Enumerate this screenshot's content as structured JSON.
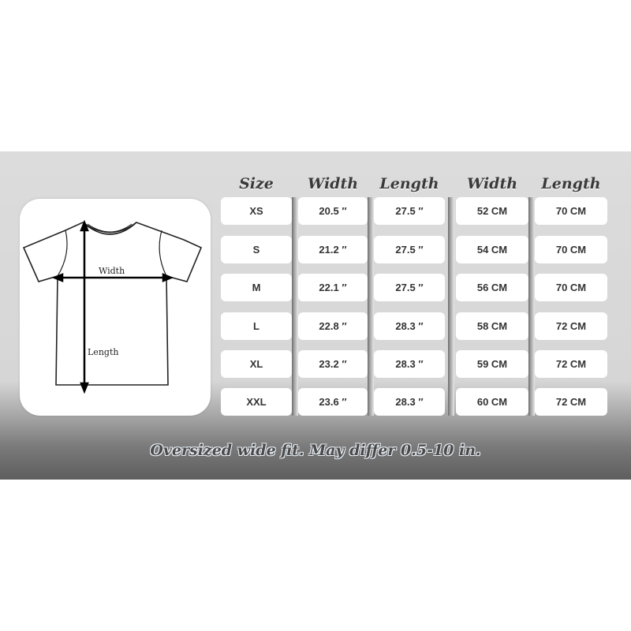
{
  "diagram": {
    "width_label": "Width",
    "length_label": "Length"
  },
  "headers": [
    "Size",
    "Width",
    "Length",
    "Width",
    "Length"
  ],
  "rows": [
    [
      "XS",
      "20.5 ″",
      "27.5 ″",
      "52 CM",
      "70 CM"
    ],
    [
      "S",
      "21.2 ″",
      "27.5 ″",
      "54 CM",
      "70 CM"
    ],
    [
      "M",
      "22.1 ″",
      "27.5 ″",
      "56 CM",
      "70 CM"
    ],
    [
      "L",
      "22.8 ″",
      "28.3 ″",
      "58 CM",
      "72 CM"
    ],
    [
      "XL",
      "23.2 ″",
      "28.3 ″",
      "59 CM",
      "72 CM"
    ],
    [
      "XXL",
      "23.6 ″",
      "28.3 ″",
      "60 CM",
      "72 CM"
    ]
  ],
  "footer": "Oversized wide fit.  May differ 0.5-10 in."
}
